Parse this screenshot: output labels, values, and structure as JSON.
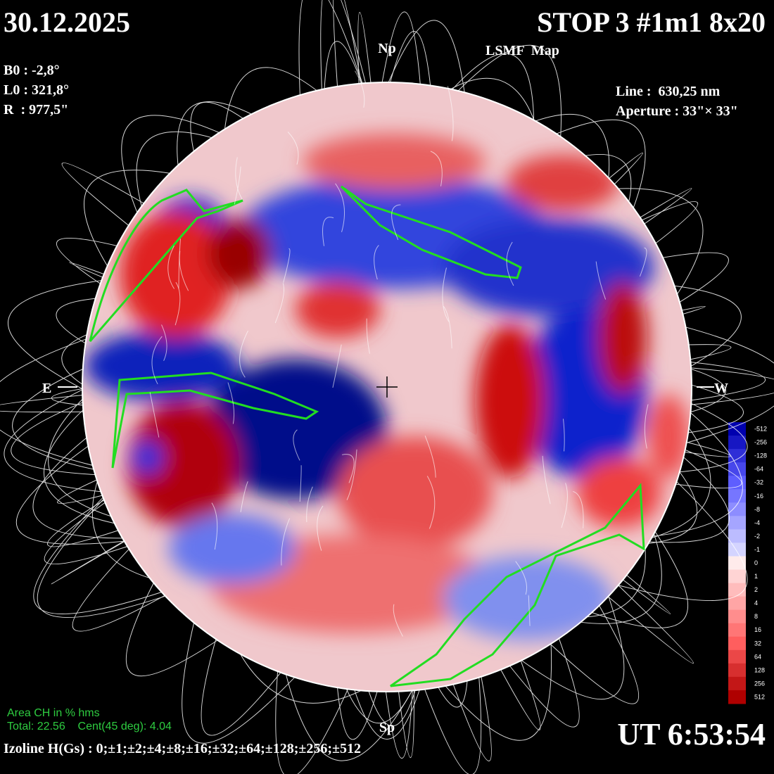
{
  "date": "30.12.2025",
  "title": "STOP 3 #1m1 8x20",
  "subtitle": "LSMF  Map",
  "params": [
    "B0 : -2,8°",
    "L0 : 321,8°",
    "R  : 977,5\""
  ],
  "instrument": [
    "Line :  630,25 nm",
    "Aperture : 33\"× 33\""
  ],
  "poles": {
    "north": "Np",
    "south": "Sp",
    "east": "E",
    "west": "W"
  },
  "colorbar": {
    "labels": [
      -512,
      -256,
      -128,
      -64,
      -32,
      -16,
      -8,
      -4,
      -2,
      -1,
      0,
      1,
      2,
      4,
      8,
      16,
      32,
      64,
      128,
      256,
      512
    ]
  },
  "area_ch": {
    "title": "Area CH in % hms",
    "values": "Total: 22.56    Cent(45 deg): 4.04"
  },
  "izoline": "Izoline H(Gs) : 0;±1;±2;±4;±8;±16;±32;±64;±128;±256;±512",
  "time": "UT 6:53:54"
}
